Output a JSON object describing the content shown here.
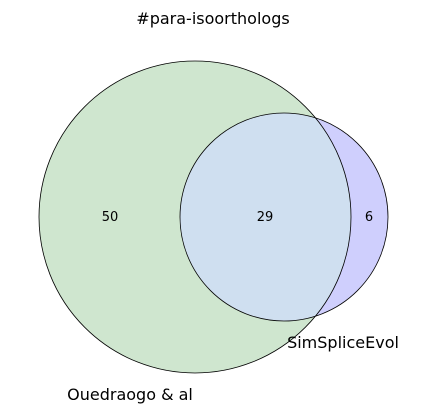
{
  "title": "#para-isoorthologs",
  "sets": [
    {
      "name": "Ouedraogo & al",
      "color": "#cfe6cf"
    },
    {
      "name": "SimSpliceEvol",
      "color": "#cfcffd"
    }
  ],
  "intersection_color": "#cfdff0",
  "counts": {
    "only_a": "50",
    "both": "29",
    "only_b": "6"
  }
}
